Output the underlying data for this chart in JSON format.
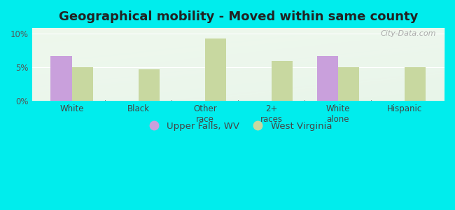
{
  "title": "Geographical mobility - Moved within same county",
  "categories": [
    "White",
    "Black",
    "Other\nrace",
    "2+\nraces",
    "White\nalone",
    "Hispanic"
  ],
  "upper_falls": [
    6.7,
    0,
    0,
    0,
    6.7,
    0
  ],
  "west_virginia": [
    5.0,
    4.7,
    9.3,
    5.9,
    5.0,
    5.0
  ],
  "color_upper_falls": "#c9a0dc",
  "color_west_virginia": "#c8d8a0",
  "background_color": "#00eded",
  "ylabel_ticks": [
    "0%",
    "5%",
    "10%"
  ],
  "yticks": [
    0,
    5,
    10
  ],
  "ylim": [
    0,
    10.8
  ],
  "bar_width": 0.32,
  "legend_labels": [
    "Upper Falls, WV",
    "West Virginia"
  ],
  "title_fontsize": 13,
  "tick_fontsize": 8.5,
  "legend_fontsize": 9.5,
  "grid_color": "#ffffff",
  "watermark_text": "City-Data.com"
}
